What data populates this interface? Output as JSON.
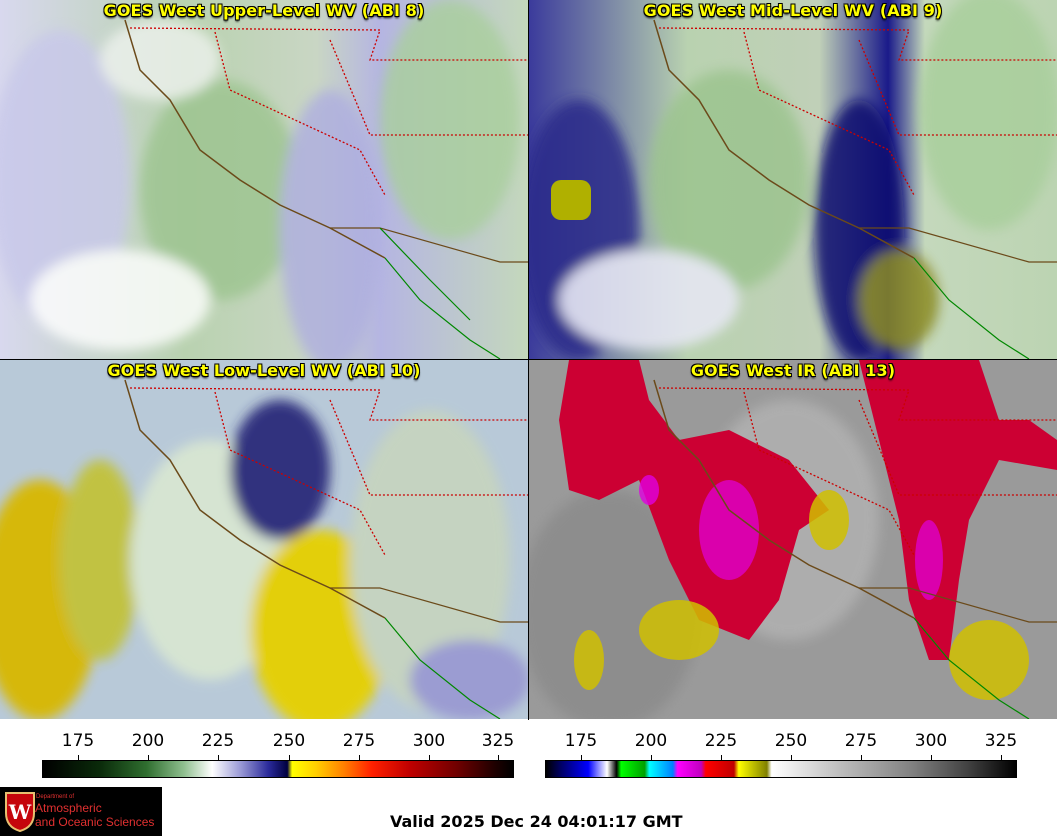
{
  "panels": {
    "upper": {
      "title": "GOES West Upper-Level WV (ABI 8)"
    },
    "mid": {
      "title": "GOES West Mid-Level WV (ABI 9)"
    },
    "low": {
      "title": "GOES West Low-Level WV (ABI 10)"
    },
    "ir": {
      "title": "GOES West IR (ABI 13)"
    }
  },
  "colorbars": {
    "wv": {
      "ticks": [
        "175",
        "200",
        "225",
        "250",
        "275",
        "300",
        "325"
      ]
    },
    "ir": {
      "ticks": [
        "175",
        "200",
        "225",
        "250",
        "275",
        "300",
        "325"
      ]
    }
  },
  "logo": {
    "line1": "Department of",
    "line2": "Atmospheric",
    "line3": "and Oceanic Sciences",
    "emblem": "uw-crest-icon"
  },
  "footer": {
    "valid": "Valid 2025 Dec 24 04:01:17 GMT"
  },
  "colors": {
    "title": "#ffff00",
    "state_border": "#cc0000",
    "coast": "#6b4a1a",
    "mexico_coast": "#008800"
  }
}
